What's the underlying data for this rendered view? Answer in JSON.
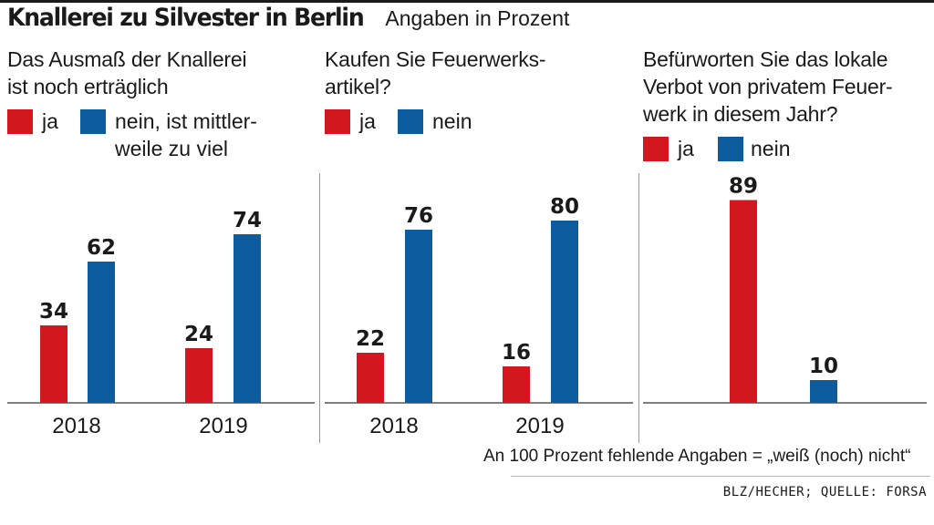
{
  "header": {
    "title": "Knallerei zu Silvester in Berlin",
    "subtitle": "Angaben in Prozent"
  },
  "colors": {
    "ja": "#d2171f",
    "nein": "#0d5c9e"
  },
  "chart_data": [
    {
      "type": "bar",
      "question_lines": [
        "Das Ausmaß der Knallerei",
        "ist noch erträglich"
      ],
      "legend": [
        {
          "key": "ja",
          "lines": [
            "ja"
          ]
        },
        {
          "key": "nein",
          "lines": [
            "nein, ist mittler-",
            "weile zu viel"
          ]
        }
      ],
      "categories": [
        "2018",
        "2019"
      ],
      "series": [
        {
          "name": "ja",
          "values": [
            34,
            24
          ]
        },
        {
          "name": "nein, ist mittlerweile zu viel",
          "values": [
            62,
            74
          ]
        }
      ]
    },
    {
      "type": "bar",
      "question_lines": [
        "Kaufen Sie Feuerwerks-",
        "artikel?"
      ],
      "legend": [
        {
          "key": "ja",
          "lines": [
            "ja"
          ]
        },
        {
          "key": "nein",
          "lines": [
            "nein"
          ]
        }
      ],
      "categories": [
        "2018",
        "2019"
      ],
      "series": [
        {
          "name": "ja",
          "values": [
            22,
            16
          ]
        },
        {
          "name": "nein",
          "values": [
            76,
            80
          ]
        }
      ]
    },
    {
      "type": "bar",
      "question_lines": [
        "Befürworten Sie das lokale",
        "Verbot von privatem Feuer-",
        "werk in diesem Jahr?"
      ],
      "legend": [
        {
          "key": "ja",
          "lines": [
            "ja"
          ]
        },
        {
          "key": "nein",
          "lines": [
            "nein"
          ]
        }
      ],
      "categories": [
        ""
      ],
      "series": [
        {
          "name": "ja",
          "values": [
            89
          ]
        },
        {
          "name": "nein",
          "values": [
            10
          ]
        }
      ]
    }
  ],
  "footnote": "An 100 Prozent fehlende Angaben = „weiß (noch) nicht“",
  "source": "BLZ/HECHER; QUELLE: FORSA"
}
